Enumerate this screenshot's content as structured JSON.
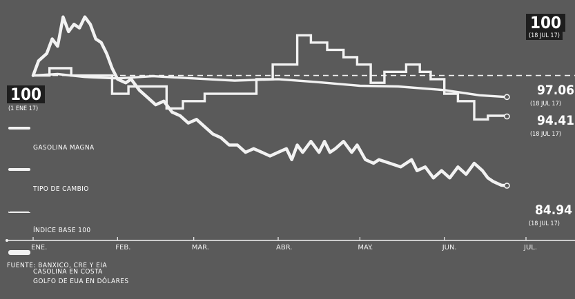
{
  "source": "FUENTE: BANXICO, CRE Y EIA",
  "start_marker": {
    "value": "100",
    "date": "(1 ENE 17)"
  },
  "end_marker": {
    "value": "100",
    "date": "(18 JUL 17)"
  },
  "legend": {
    "magna": "GASOLINA MAGNA",
    "fx": "TIPO DE CAMBIO",
    "base": "ÍNDICE BASE 100",
    "gulf": "CASOLINA EN COSTA\nGOLFO DE EUA EN DÓLARES"
  },
  "end_labels": {
    "fx": {
      "value": "97.06",
      "date": "(18 JUL 17)"
    },
    "magna": {
      "value": "94.41",
      "date": "(18 JUL 17)"
    },
    "gulf": {
      "value": "84.94",
      "date": "(18 JUL 17)"
    }
  },
  "colors": {
    "background": "#5a5a5a",
    "line": "#f2f2f2",
    "label_box": "#1e1e1e"
  },
  "chart_data": {
    "type": "line",
    "xlabel": "",
    "ylabel": "",
    "x_ticks": [
      {
        "label": "ENE.",
        "day": 1
      },
      {
        "label": "FEB.",
        "day": 32
      },
      {
        "label": "MAR.",
        "day": 60
      },
      {
        "label": "ABR.",
        "day": 91
      },
      {
        "label": "MAY.",
        "day": 121
      },
      {
        "label": "JUN.",
        "day": 152
      },
      {
        "label": "JUL.",
        "day": 182
      }
    ],
    "xlim": [
      1,
      200
    ],
    "ylim": [
      80,
      109
    ],
    "grid": false,
    "legend_position": "left",
    "baseline": 100,
    "series": [
      {
        "name": "GASOLINA MAGNA",
        "style": "stepped",
        "points": [
          [
            1,
            100
          ],
          [
            7,
            100
          ],
          [
            7,
            101
          ],
          [
            15,
            101
          ],
          [
            15,
            100
          ],
          [
            30,
            100
          ],
          [
            30,
            97.5
          ],
          [
            36,
            97.5
          ],
          [
            36,
            98.5
          ],
          [
            50,
            98.5
          ],
          [
            50,
            95.5
          ],
          [
            56,
            95.5
          ],
          [
            56,
            96.5
          ],
          [
            64,
            96.5
          ],
          [
            64,
            97.5
          ],
          [
            83,
            97.5
          ],
          [
            83,
            99.5
          ],
          [
            89,
            99.5
          ],
          [
            89,
            101.5
          ],
          [
            98,
            101.5
          ],
          [
            98,
            105.5
          ],
          [
            103,
            105.5
          ],
          [
            103,
            104.5
          ],
          [
            109,
            104.5
          ],
          [
            109,
            103.5
          ],
          [
            115,
            103.5
          ],
          [
            115,
            102.5
          ],
          [
            120,
            102.5
          ],
          [
            120,
            101.5
          ],
          [
            125,
            101.5
          ],
          [
            125,
            99
          ],
          [
            130,
            99
          ],
          [
            130,
            100.5
          ],
          [
            138,
            100.5
          ],
          [
            138,
            101.5
          ],
          [
            143,
            101.5
          ],
          [
            143,
            100.5
          ],
          [
            147,
            100.5
          ],
          [
            147,
            99.5
          ],
          [
            152,
            99.5
          ],
          [
            152,
            97.5
          ],
          [
            157,
            97.5
          ],
          [
            157,
            96.5
          ],
          [
            163,
            96.5
          ],
          [
            163,
            94
          ],
          [
            168,
            94
          ],
          [
            168,
            94.5
          ],
          [
            175,
            94.5
          ],
          [
            175,
            94.41
          ]
        ]
      },
      {
        "name": "TIPO DE CAMBIO",
        "style": "smooth",
        "points": [
          [
            1,
            100
          ],
          [
            10,
            100.2
          ],
          [
            20,
            99.8
          ],
          [
            32,
            99.6
          ],
          [
            45,
            99.9
          ],
          [
            60,
            99.6
          ],
          [
            75,
            99.3
          ],
          [
            91,
            99.5
          ],
          [
            105,
            99.1
          ],
          [
            121,
            98.6
          ],
          [
            135,
            98.5
          ],
          [
            152,
            98.0
          ],
          [
            165,
            97.3
          ],
          [
            175,
            97.06
          ]
        ]
      },
      {
        "name": "CASOLINA EN COSTA GOLFO DE EUA EN DÓLARES",
        "style": "jagged",
        "points": [
          [
            1,
            100
          ],
          [
            3,
            102
          ],
          [
            6,
            103
          ],
          [
            8,
            105
          ],
          [
            10,
            104
          ],
          [
            12,
            108
          ],
          [
            14,
            106
          ],
          [
            16,
            107
          ],
          [
            18,
            106.5
          ],
          [
            20,
            108
          ],
          [
            22,
            107
          ],
          [
            24,
            105
          ],
          [
            26,
            104.5
          ],
          [
            28,
            103
          ],
          [
            30,
            101
          ],
          [
            32,
            99.5
          ],
          [
            35,
            99
          ],
          [
            37,
            99.5
          ],
          [
            40,
            98
          ],
          [
            43,
            97
          ],
          [
            46,
            96
          ],
          [
            49,
            96.5
          ],
          [
            52,
            95
          ],
          [
            55,
            94.5
          ],
          [
            58,
            93.5
          ],
          [
            61,
            94
          ],
          [
            64,
            93
          ],
          [
            67,
            92
          ],
          [
            70,
            91.5
          ],
          [
            73,
            90.5
          ],
          [
            76,
            90.5
          ],
          [
            79,
            89.5
          ],
          [
            82,
            90
          ],
          [
            85,
            89.5
          ],
          [
            88,
            89
          ],
          [
            91,
            89.5
          ],
          [
            94,
            90
          ],
          [
            96,
            88.5
          ],
          [
            98,
            90.5
          ],
          [
            100,
            89.5
          ],
          [
            103,
            91
          ],
          [
            106,
            89.5
          ],
          [
            108,
            91
          ],
          [
            110,
            89.5
          ],
          [
            112,
            90
          ],
          [
            115,
            91
          ],
          [
            118,
            89.5
          ],
          [
            120,
            90.5
          ],
          [
            123,
            88.5
          ],
          [
            126,
            88
          ],
          [
            128,
            88.5
          ],
          [
            132,
            88
          ],
          [
            136,
            87.5
          ],
          [
            140,
            88.5
          ],
          [
            142,
            87
          ],
          [
            145,
            87.5
          ],
          [
            148,
            86
          ],
          [
            151,
            87
          ],
          [
            154,
            86
          ],
          [
            157,
            87.5
          ],
          [
            160,
            86.5
          ],
          [
            163,
            88
          ],
          [
            166,
            87
          ],
          [
            168,
            86
          ],
          [
            170,
            85.5
          ],
          [
            173,
            85
          ],
          [
            175,
            84.94
          ]
        ]
      },
      {
        "name": "ÍNDICE BASE 100",
        "style": "dashed",
        "points": [
          [
            1,
            100
          ],
          [
            200,
            100
          ]
        ]
      }
    ]
  }
}
